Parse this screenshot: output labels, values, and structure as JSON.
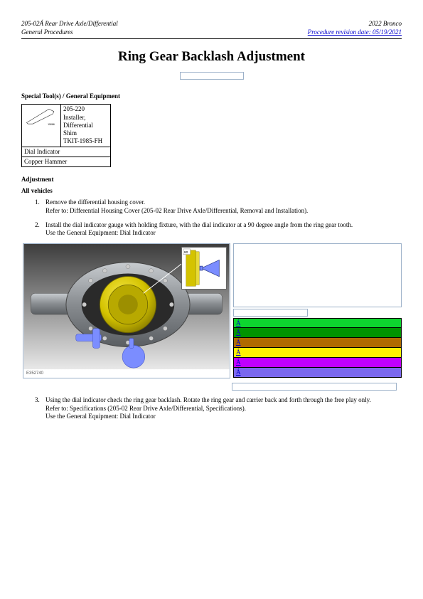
{
  "header": {
    "left_top": "205-02Á Rear Drive Axle/Differential",
    "left_bottom": "General Procedures",
    "right_top": "2022 Bronco",
    "right_link": "Procedure revision date: 05/19/2021"
  },
  "title": "Ring Gear Backlash Adjustment",
  "sections": {
    "tools_heading": "Special Tool(s) / General Equipment",
    "tool1_line1": "205-220",
    "tool1_line2": "Installer, Differential Shim",
    "tool1_line3": "TKIT-1985-FH",
    "tool2": "Dial Indicator",
    "tool3": "Copper Hammer",
    "adjustment_heading": "Adjustment",
    "all_vehicles": "All vehicles"
  },
  "steps": {
    "s1_line1": "Remove the differential housing cover.",
    "s1_line2": "Refer to: Differential Housing Cover (205-02 Rear Drive Axle/Differential, Removal and Installation).",
    "s2_line1": "Install the dial indicator gauge with holding fixture, with the dial indicator at a 90 degree angle from the ring gear tooth.",
    "s2_line2": "Use the General Equipment: Dial Indicator",
    "s3_line1": "Using the dial indicator check the ring gear backlash. Rotate the ring gear and carrier back and forth through the free play only.",
    "s3_line2": "Refer to: Specifications (205-02 Rear Drive Axle/Differential, Specifications).",
    "s3_line3": "Use the General Equipment: Dial Indicator"
  },
  "figure": {
    "number": "E352740",
    "inset_label": "90",
    "colors": [
      {
        "hex": "#0dd62f",
        "label": "Á"
      },
      {
        "hex": "#009400",
        "label": "Á"
      },
      {
        "hex": "#b06a00",
        "label": "Á"
      },
      {
        "hex": "#fff200",
        "label": "Á"
      },
      {
        "hex": "#c000ff",
        "label": "Á"
      },
      {
        "hex": "#7b68ee",
        "label": "Á"
      }
    ],
    "diff_body_color": "#9aa0a6",
    "diff_body_dark": "#6c7278",
    "ring_gear_color": "#d4c300",
    "ring_gear_dark": "#a89b00",
    "indicator_color": "#7b8dff",
    "background_gradient_top": "#3d3d3d",
    "background_gradient_bottom": "#e8e8e8"
  }
}
